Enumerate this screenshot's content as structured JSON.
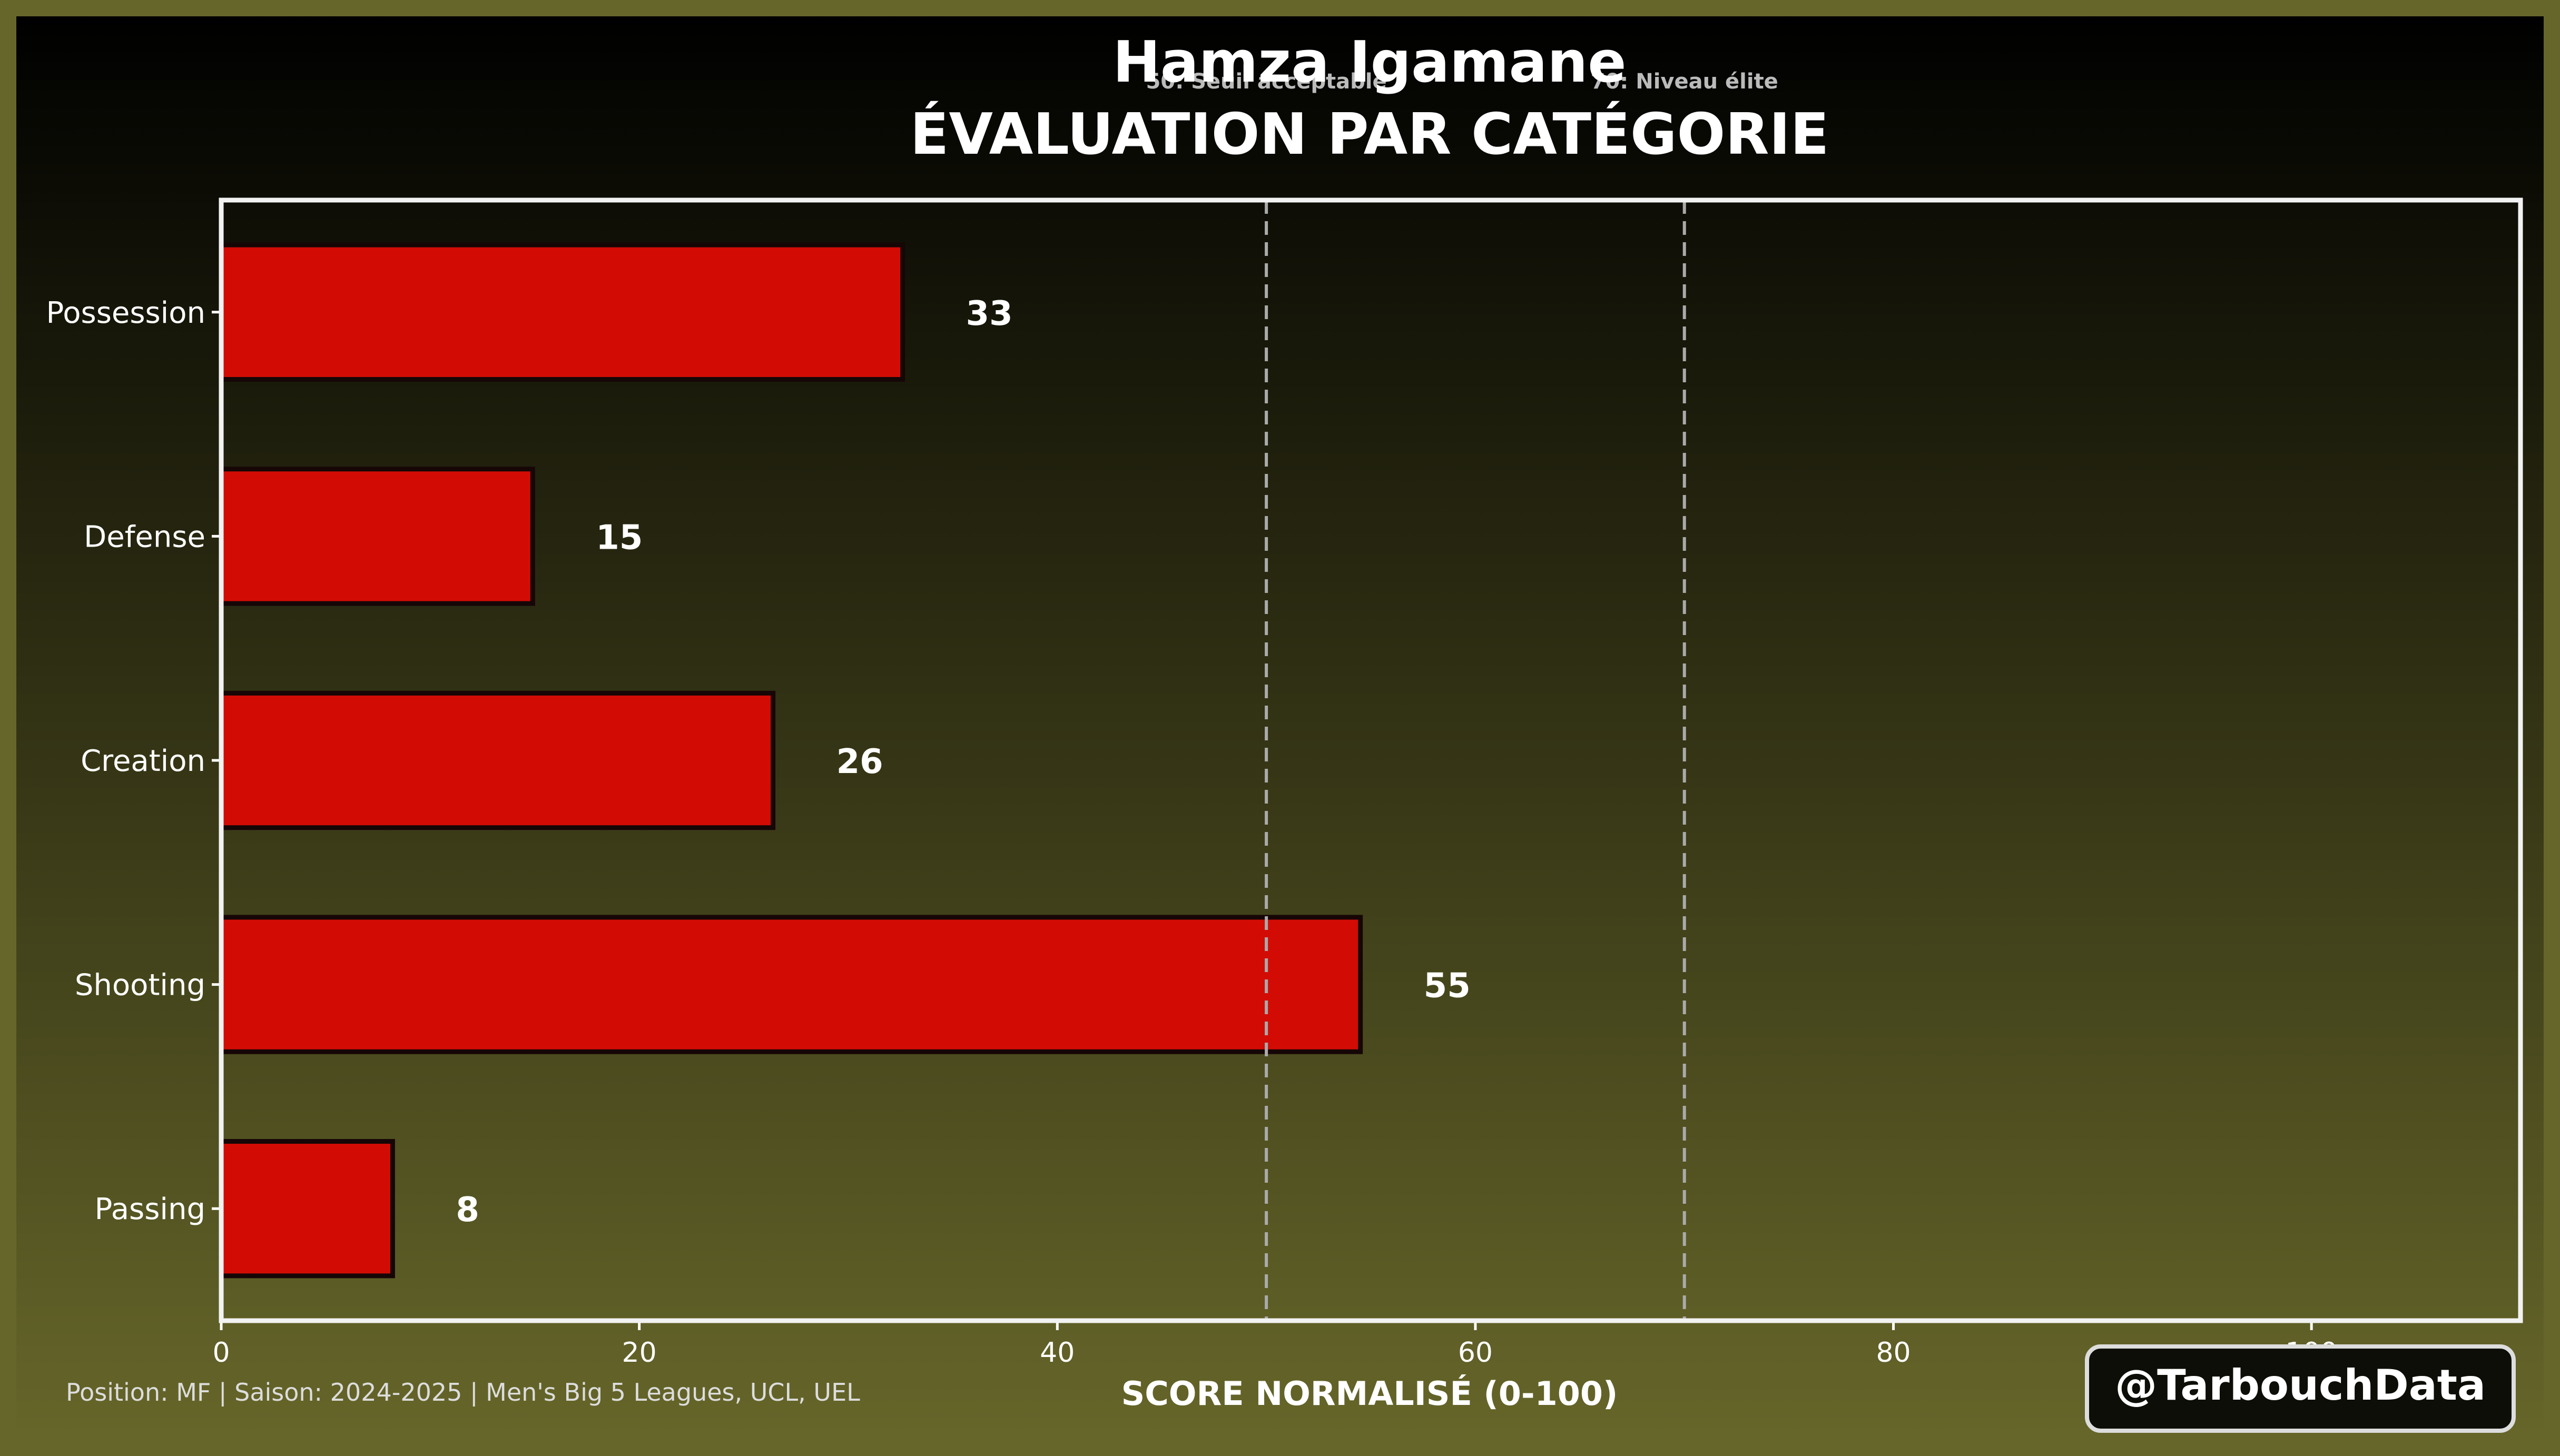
{
  "chart_data": {
    "type": "bar",
    "orientation": "horizontal",
    "title": "Hamza Igamane",
    "subtitle": "ÉVALUATION PAR CATÉGORIE",
    "xlabel": "SCORE NORMALISÉ (0-100)",
    "ylabel": "",
    "xlim": [
      0,
      110
    ],
    "xticks": [
      0,
      20,
      40,
      60,
      80,
      100
    ],
    "categories": [
      "Possession",
      "Defense",
      "Creation",
      "Shooting",
      "Passing"
    ],
    "values": [
      32.6,
      14.9,
      26.4,
      54.5,
      8.2
    ],
    "value_labels": [
      "33",
      "15",
      "26",
      "55",
      "8"
    ],
    "reference_lines": [
      {
        "x": 50,
        "label": "50: Seuil acceptable"
      },
      {
        "x": 70,
        "label": "70: Niveau élite"
      }
    ],
    "grid": false,
    "colors": {
      "bar": "#d20c05",
      "bar_edge": "#160606",
      "frame": "#f2f2f2",
      "ref_line": "#aaaaaa",
      "bg_top": "#000000",
      "bg_bottom": "#66662a",
      "border": "#66662a"
    }
  },
  "footer": {
    "info": "Position: MF | Saison: 2024-2025 | Men's Big 5 Leagues, UCL, UEL",
    "handle": "@TarbouchData"
  }
}
